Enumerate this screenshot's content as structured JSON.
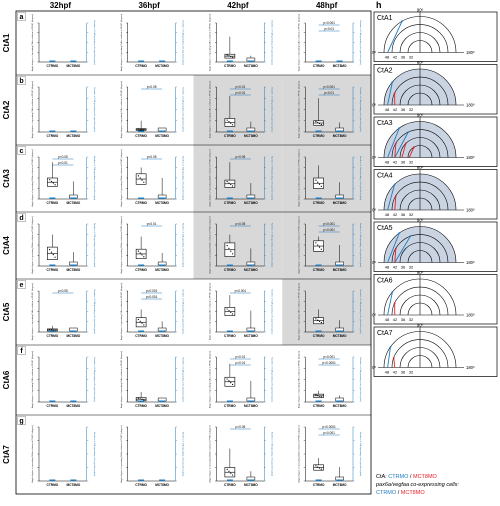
{
  "header": {
    "times": [
      "32hpf",
      "36hpf",
      "42hpf",
      "48hpf"
    ],
    "panel_h": "h"
  },
  "rows": [
    {
      "letter": "a",
      "name": "CtA1"
    },
    {
      "letter": "b",
      "name": "CtA2"
    },
    {
      "letter": "c",
      "name": "CtA3"
    },
    {
      "letter": "d",
      "name": "CtA4"
    },
    {
      "letter": "e",
      "name": "CtA5"
    },
    {
      "letter": "f",
      "name": "CtA6"
    },
    {
      "letter": "g",
      "name": "CtA7"
    }
  ],
  "shaded_cells": [
    [
      1,
      2
    ],
    [
      1,
      3
    ],
    [
      2,
      2
    ],
    [
      2,
      3
    ],
    [
      3,
      2
    ],
    [
      3,
      3
    ],
    [
      4,
      3
    ]
  ],
  "plot_text": {
    "x_labels": [
      "CTRMO",
      "MCT8MO"
    ],
    "left_axis": "Angle degree of sprouting CtA in relation to PHBC (degree)",
    "right_axis": "Number of CtA sprouting cells (pax6a/vegfaa)"
  },
  "chart_data": [
    {
      "type": "box",
      "row": "CtA1",
      "time": "32hpf",
      "categories": [
        "CTRMO",
        "MCT8MO"
      ],
      "annotations": []
    },
    {
      "type": "box",
      "row": "CtA1",
      "time": "36hpf",
      "categories": [
        "CTRMO",
        "MCT8MO"
      ],
      "annotations": []
    },
    {
      "type": "box",
      "row": "CtA1",
      "time": "42hpf",
      "categories": [
        "CTRMO",
        "MCT8MO"
      ],
      "annotations": []
    },
    {
      "type": "box",
      "row": "CtA1",
      "time": "48hpf",
      "categories": [
        "CTRMO",
        "MCT8MO"
      ],
      "annotations": [
        "p<0.001",
        "p<0.01"
      ]
    },
    {
      "type": "box",
      "row": "CtA2",
      "time": "32hpf",
      "categories": [
        "CTRMO",
        "MCT8MO"
      ],
      "annotations": []
    },
    {
      "type": "box",
      "row": "CtA2",
      "time": "36hpf",
      "categories": [
        "CTRMO",
        "MCT8MO"
      ],
      "annotations": [
        "p<0.05"
      ]
    },
    {
      "type": "box",
      "row": "CtA2",
      "time": "42hpf",
      "categories": [
        "CTRMO",
        "MCT8MO"
      ],
      "annotations": [
        "p<0.01",
        "p<0.01"
      ]
    },
    {
      "type": "box",
      "row": "CtA2",
      "time": "48hpf",
      "categories": [
        "CTRMO",
        "MCT8MO"
      ],
      "annotations": [
        "p<0.001",
        "p<0.01"
      ]
    },
    {
      "type": "box",
      "row": "CtA3",
      "time": "32hpf",
      "categories": [
        "CTRMO",
        "MCT8MO"
      ],
      "annotations": [
        "p<0.05",
        "p<0.01"
      ]
    },
    {
      "type": "box",
      "row": "CtA3",
      "time": "36hpf",
      "categories": [
        "CTRMO",
        "MCT8MO"
      ],
      "annotations": [
        "p<0.05"
      ]
    },
    {
      "type": "box",
      "row": "CtA3",
      "time": "42hpf",
      "categories": [
        "CTRMO",
        "MCT8MO"
      ],
      "annotations": [
        "p<0.05"
      ]
    },
    {
      "type": "box",
      "row": "CtA3",
      "time": "48hpf",
      "categories": [
        "CTRMO",
        "MCT8MO"
      ],
      "annotations": []
    },
    {
      "type": "box",
      "row": "CtA4",
      "time": "32hpf",
      "categories": [
        "CTRMO",
        "MCT8MO"
      ],
      "annotations": []
    },
    {
      "type": "box",
      "row": "CtA4",
      "time": "36hpf",
      "categories": [
        "CTRMO",
        "MCT8MO"
      ],
      "annotations": [
        "p<0.01"
      ]
    },
    {
      "type": "box",
      "row": "CtA4",
      "time": "42hpf",
      "categories": [
        "CTRMO",
        "MCT8MO"
      ],
      "annotations": [
        "p<0.05"
      ]
    },
    {
      "type": "box",
      "row": "CtA4",
      "time": "48hpf",
      "categories": [
        "CTRMO",
        "MCT8MO"
      ],
      "annotations": [
        "p<0.001",
        "p<0.001"
      ]
    },
    {
      "type": "box",
      "row": "CtA5",
      "time": "32hpf",
      "categories": [
        "CTRMO",
        "MCT8MO"
      ],
      "annotations": [
        "p<0.05"
      ]
    },
    {
      "type": "box",
      "row": "CtA5",
      "time": "36hpf",
      "categories": [
        "CTRMO",
        "MCT8MO"
      ],
      "annotations": [
        "p<0.001",
        "p<0.001"
      ]
    },
    {
      "type": "box",
      "row": "CtA5",
      "time": "42hpf",
      "categories": [
        "CTRMO",
        "MCT8MO"
      ],
      "annotations": [
        "p<0.001"
      ]
    },
    {
      "type": "box",
      "row": "CtA5",
      "time": "48hpf",
      "categories": [
        "CTRMO",
        "MCT8MO"
      ],
      "annotations": []
    },
    {
      "type": "box",
      "row": "CtA6",
      "time": "32hpf",
      "categories": [
        "CTRMO",
        "MCT8MO"
      ],
      "annotations": []
    },
    {
      "type": "box",
      "row": "CtA6",
      "time": "36hpf",
      "categories": [
        "CTRMO",
        "MCT8MO"
      ],
      "annotations": []
    },
    {
      "type": "box",
      "row": "CtA6",
      "time": "42hpf",
      "categories": [
        "CTRMO",
        "MCT8MO"
      ],
      "annotations": [
        "p<0.01",
        "p<0.01"
      ]
    },
    {
      "type": "box",
      "row": "CtA6",
      "time": "48hpf",
      "categories": [
        "CTRMO",
        "MCT8MO"
      ],
      "annotations": [
        "p<0.001",
        "p<0.0001"
      ]
    },
    {
      "type": "box",
      "row": "CtA7",
      "time": "32hpf",
      "categories": [
        "CTRMO",
        "MCT8MO"
      ],
      "annotations": []
    },
    {
      "type": "box",
      "row": "CtA7",
      "time": "36hpf",
      "categories": [
        "CTRMO",
        "MCT8MO"
      ],
      "annotations": []
    },
    {
      "type": "box",
      "row": "CtA7",
      "time": "42hpf",
      "categories": [
        "CTRMO",
        "MCT8MO"
      ],
      "annotations": [
        "p<0.05"
      ]
    },
    {
      "type": "box",
      "row": "CtA7",
      "time": "48hpf",
      "categories": [
        "CTRMO",
        "MCT8MO"
      ],
      "annotations": [
        "p<0.0001",
        "p<0.001"
      ]
    }
  ],
  "semicircles": {
    "axis_labels": {
      "left": "0º",
      "top": "90º",
      "right": "180º"
    },
    "ring_labels": [
      "48",
      "42",
      "36",
      "32"
    ],
    "items": [
      {
        "label": "CtA1",
        "ctr_angles": [
          60
        ],
        "mct_angles": [],
        "shaded_rings": 0
      },
      {
        "label": "CtA2",
        "ctr_angles": [
          40
        ],
        "mct_angles": [
          25
        ],
        "shaded_rings": 2
      },
      {
        "label": "CtA3",
        "ctr_angles": [
          55,
          65
        ],
        "mct_angles": [
          30,
          45,
          60
        ],
        "shaded_rings": 2
      },
      {
        "label": "CtA4",
        "ctr_angles": [
          45
        ],
        "mct_angles": [
          30
        ],
        "shaded_rings": 2
      },
      {
        "label": "CtA5",
        "ctr_angles": [
          55,
          70
        ],
        "mct_angles": [
          30
        ],
        "shaded_rings": 1
      },
      {
        "label": "CtA6",
        "ctr_angles": [
          40
        ],
        "mct_angles": [
          25
        ],
        "shaded_rings": 0
      },
      {
        "label": "CtA7",
        "ctr_angles": [
          35
        ],
        "mct_angles": [
          20
        ],
        "shaded_rings": 0
      }
    ]
  },
  "legend": {
    "line1_prefix": "CtA: ",
    "ctr": "CTRMO",
    "sep": " / ",
    "mct": "MCT8MO",
    "line2": "pax6a/vegfaa co-expressing cells:",
    "line3_ctr": "CTRMO",
    "line3_sep": " / ",
    "line3_mct": "MCT8MO"
  },
  "colors": {
    "ctr": "#1f7bbf",
    "mct": "#e8202a",
    "shade": "#d8d8d8",
    "ring_fill": "#c9d3e2",
    "axis_right": "#1f7bbf"
  }
}
